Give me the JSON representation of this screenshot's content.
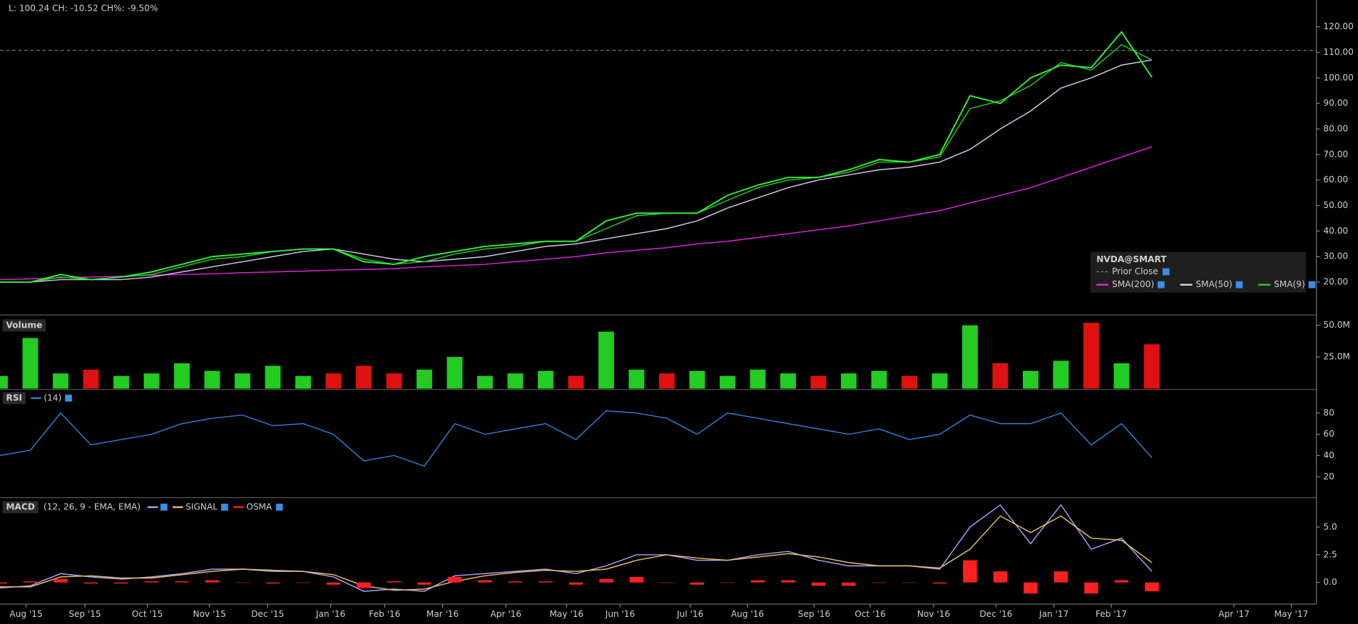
{
  "chart_data": [
    {
      "type": "line",
      "title": "L: 100.24 CH: -10.52 CH%: -9.50%",
      "values": [
        20,
        20,
        23,
        21,
        22,
        24,
        27,
        30,
        31,
        32,
        33,
        33,
        28,
        27,
        30,
        32,
        34,
        35,
        36,
        36,
        44,
        47,
        47,
        47,
        54,
        58,
        61,
        61,
        64,
        68,
        67,
        70,
        93,
        90,
        100,
        105,
        104,
        118,
        100.24
      ],
      "color": "#33ee33",
      "series": [
        {
          "name": "SMA(200)",
          "color": "#e020e0",
          "values": [
            21,
            21.3,
            21.7,
            22,
            22.3,
            22.7,
            23,
            23.3,
            23.7,
            24,
            24.3,
            24.7,
            25,
            25.3,
            26,
            26.5,
            27,
            28,
            29,
            30,
            31.5,
            32.5,
            33.5,
            35,
            36,
            37.5,
            39,
            40.5,
            42,
            44,
            46,
            48,
            51,
            54,
            57,
            61,
            65,
            69,
            73
          ]
        },
        {
          "name": "SMA(50)",
          "color": "#d8c8f0",
          "values": [
            20,
            20,
            21,
            21,
            21,
            22,
            24,
            26,
            28,
            30,
            32,
            33,
            31,
            29,
            28,
            29,
            30,
            32,
            34,
            35,
            37,
            39,
            41,
            44,
            49,
            53,
            57,
            60,
            62,
            64,
            65,
            67,
            72,
            80,
            87,
            96,
            100,
            105,
            107
          ]
        },
        {
          "name": "SMA(9)",
          "color": "#22cc22",
          "values": [
            20,
            20,
            22,
            21,
            22,
            23,
            26,
            29,
            30,
            32,
            33,
            33,
            29,
            27,
            28,
            31,
            33,
            34,
            36,
            36,
            41,
            46,
            47,
            47,
            52,
            57,
            60,
            61,
            63,
            67,
            67,
            69,
            88,
            91,
            97,
            106,
            103,
            113,
            107
          ]
        }
      ],
      "prior_close": {
        "label": "Prior Close",
        "value": 110.76
      },
      "legend_title": "NVDA@SMART",
      "legend": "lower right",
      "xlim": [
        0,
        43.43
      ],
      "ylim": [
        7.8,
        130.5
      ],
      "yticks": [
        {
          "value": 20,
          "label": "20.00"
        },
        {
          "value": 30,
          "label": "30.00"
        },
        {
          "value": 40,
          "label": "40.00"
        },
        {
          "value": 50,
          "label": "50.00"
        },
        {
          "value": 60,
          "label": "60.00"
        },
        {
          "value": 70,
          "label": "70.00"
        },
        {
          "value": 80,
          "label": "80.00"
        },
        {
          "value": 90,
          "label": "90.00"
        },
        {
          "value": 100,
          "label": "100.00"
        },
        {
          "value": 110,
          "label": "110.00"
        },
        {
          "value": 120,
          "label": "120.00"
        }
      ]
    },
    {
      "type": "bar",
      "title": "Volume",
      "values": [
        10,
        40,
        12,
        15,
        10,
        12,
        20,
        14,
        12,
        18,
        10,
        12,
        18,
        12,
        15,
        25,
        10,
        12,
        14,
        10,
        45,
        15,
        12,
        14,
        10,
        15,
        12,
        10,
        12,
        14,
        10,
        12,
        50,
        20,
        14,
        22,
        52,
        20,
        35
      ],
      "colors": [
        "#22cc22",
        "#22cc22",
        "#22cc22",
        "#dd1111",
        "#22cc22",
        "#22cc22",
        "#22cc22",
        "#22cc22",
        "#22cc22",
        "#22cc22",
        "#22cc22",
        "#dd1111",
        "#dd1111",
        "#dd1111",
        "#22cc22",
        "#22cc22",
        "#22cc22",
        "#22cc22",
        "#22cc22",
        "#dd1111",
        "#22cc22",
        "#22cc22",
        "#dd1111",
        "#22cc22",
        "#22cc22",
        "#22cc22",
        "#22cc22",
        "#dd1111",
        "#22cc22",
        "#22cc22",
        "#dd1111",
        "#22cc22",
        "#22cc22",
        "#dd1111",
        "#22cc22",
        "#22cc22",
        "#dd1111",
        "#22cc22",
        "#dd1111"
      ],
      "xlim": [
        0,
        43.43
      ],
      "ylim": [
        0,
        55.4
      ],
      "yticks": [
        {
          "value": 25,
          "label": "25.0M"
        },
        {
          "value": 50,
          "label": "50.0M"
        }
      ]
    },
    {
      "type": "line",
      "title": "RSI",
      "series": [
        {
          "name": "(14)",
          "color": "#2a7fd4",
          "values": [
            40,
            45,
            80,
            50,
            55,
            60,
            70,
            75,
            78,
            68,
            70,
            60,
            35,
            40,
            30,
            70,
            60,
            65,
            70,
            55,
            82,
            80,
            75,
            60,
            80,
            75,
            70,
            65,
            60,
            65,
            55,
            60,
            78,
            70,
            70,
            80,
            50,
            70,
            38
          ]
        }
      ],
      "xlim": [
        0,
        43.43
      ],
      "ylim": [
        2,
        100.5
      ],
      "yticks": [
        20,
        40,
        60,
        80
      ]
    },
    {
      "type": "line",
      "title": "MACD",
      "subtitle": "(12, 26, 9 - EMA, EMA)",
      "series": [
        {
          "color": "#b0a0ff",
          "values": [
            -0.5,
            -0.3,
            0.8,
            0.5,
            0.3,
            0.5,
            0.8,
            1.2,
            1.2,
            1.0,
            1.0,
            0.5,
            -0.8,
            -0.6,
            -0.8,
            0.6,
            0.8,
            1.0,
            1.2,
            0.8,
            1.5,
            2.5,
            2.5,
            2.0,
            2.0,
            2.5,
            2.8,
            2.0,
            1.5,
            1.5,
            1.5,
            1.2,
            5.0,
            7.0,
            3.5,
            7.0,
            3.0,
            4.0,
            1.0
          ]
        },
        {
          "name": "SIGNAL",
          "color": "#e8c060",
          "values": [
            -0.4,
            -0.4,
            0.5,
            0.6,
            0.4,
            0.4,
            0.7,
            1.0,
            1.2,
            1.1,
            1.0,
            0.7,
            -0.3,
            -0.7,
            -0.6,
            0.1,
            0.6,
            0.9,
            1.1,
            1.0,
            1.2,
            2.0,
            2.5,
            2.2,
            2.0,
            2.3,
            2.6,
            2.3,
            1.8,
            1.5,
            1.5,
            1.3,
            3.0,
            6.0,
            4.5,
            6.0,
            4.0,
            3.8,
            1.8
          ]
        },
        {
          "name": "OSMA",
          "color": "#ff2020",
          "style": "bar",
          "values": [
            -0.1,
            0.1,
            0.3,
            -0.1,
            -0.1,
            0.1,
            0.1,
            0.2,
            0,
            -0.1,
            0,
            -0.2,
            -0.5,
            0.1,
            -0.2,
            0.5,
            0.2,
            0.1,
            0.1,
            -0.2,
            0.3,
            0.5,
            0,
            -0.2,
            0,
            0.2,
            0.2,
            -0.3,
            -0.3,
            0,
            0,
            -0.1,
            2.0,
            1.0,
            -1.0,
            1.0,
            -1.0,
            0.2,
            -0.8
          ]
        }
      ],
      "xlim": [
        0,
        43.43
      ],
      "ylim": [
        -1.875,
        7.42
      ],
      "yticks": [
        {
          "value": 0,
          "label": "0.0"
        },
        {
          "value": 2.5,
          "label": "2.5"
        },
        {
          "value": 5,
          "label": "5.0"
        }
      ],
      "xticks": [
        {
          "value": 0.86,
          "label": "Aug '15"
        },
        {
          "value": 2.8,
          "label": "Sep '15"
        },
        {
          "value": 4.86,
          "label": "Oct '15"
        },
        {
          "value": 6.91,
          "label": "Nov '15"
        },
        {
          "value": 8.83,
          "label": "Dec '15"
        },
        {
          "value": 10.91,
          "label": "Jan '16"
        },
        {
          "value": 12.69,
          "label": "Feb '16"
        },
        {
          "value": 14.6,
          "label": "Mar '16"
        },
        {
          "value": 16.69,
          "label": "Apr '16"
        },
        {
          "value": 18.69,
          "label": "May '16"
        },
        {
          "value": 20.46,
          "label": "Jun '16"
        },
        {
          "value": 22.77,
          "label": "Jul '16"
        },
        {
          "value": 24.66,
          "label": "Aug '16"
        },
        {
          "value": 26.86,
          "label": "Sep '16"
        },
        {
          "value": 28.71,
          "label": "Oct '16"
        },
        {
          "value": 30.8,
          "label": "Nov '16"
        },
        {
          "value": 32.86,
          "label": "Dec '16"
        },
        {
          "value": 34.77,
          "label": "Jan '17"
        },
        {
          "value": 36.66,
          "label": "Feb '17"
        },
        {
          "value": 40.71,
          "label": "Apr '17"
        },
        {
          "value": 42.6,
          "label": "May '17"
        }
      ]
    }
  ]
}
